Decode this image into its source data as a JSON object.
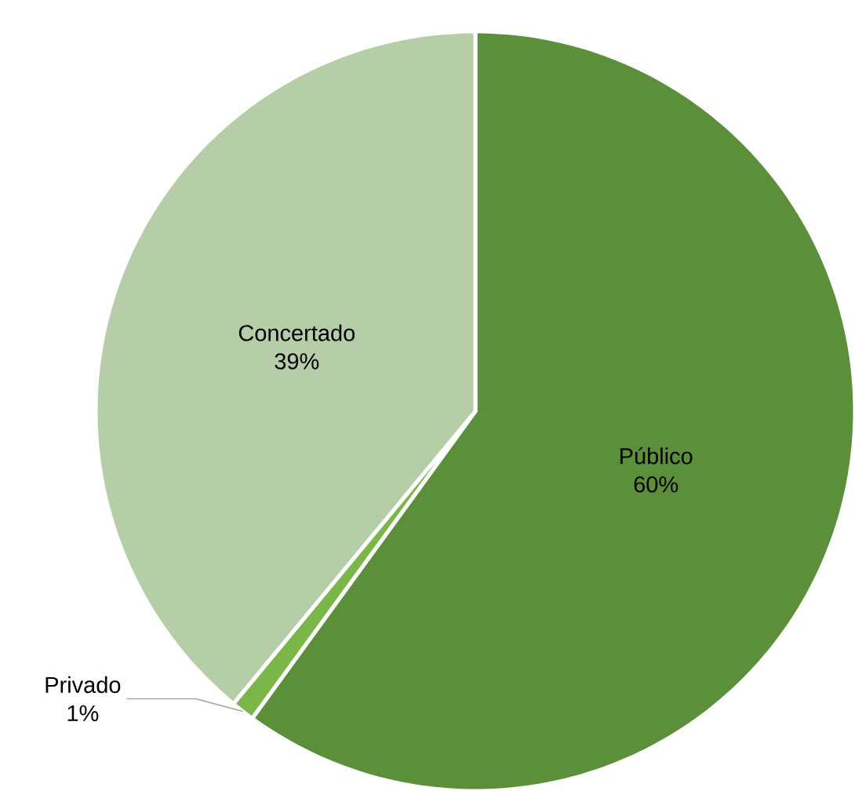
{
  "chart_data": {
    "type": "pie",
    "categories": [
      "Público",
      "Privado",
      "Concertado"
    ],
    "values": [
      60,
      1,
      39
    ],
    "value_labels": [
      "60%",
      "1%",
      "39%"
    ],
    "colors": [
      "#5b8f3a",
      "#7ab648",
      "#b5cea8"
    ]
  }
}
